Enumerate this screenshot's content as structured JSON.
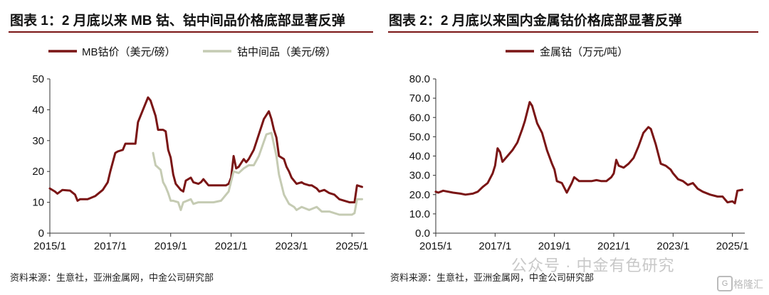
{
  "chart_data": [
    {
      "type": "line",
      "title": "图表 1：2 月底以来 MB 钴、钴中间品价格底部显著反弹",
      "source": "资料来源：生意社，亚洲金属网，中金公司研究部",
      "x_ticks": [
        "2015/1",
        "2017/1",
        "2019/1",
        "2021/1",
        "2023/1",
        "2025/1"
      ],
      "y_ticks": [
        "0",
        "10",
        "20",
        "30",
        "40",
        "50"
      ],
      "ylim": [
        0,
        50
      ],
      "xlim": [
        "2015-01",
        "2025-06"
      ],
      "legend_position": "top",
      "grid": false,
      "series": [
        {
          "name": "MB钴价（美元/磅）",
          "color": "#7a1515",
          "points": [
            [
              "2015-01",
              14.5
            ],
            [
              "2015-03",
              13.5
            ],
            [
              "2015-04",
              12.8
            ],
            [
              "2015-06",
              14.0
            ],
            [
              "2015-09",
              13.8
            ],
            [
              "2015-11",
              12.5
            ],
            [
              "2015-12",
              10.5
            ],
            [
              "2016-01",
              11.0
            ],
            [
              "2016-04",
              11.0
            ],
            [
              "2016-07",
              12.0
            ],
            [
              "2016-10",
              14.0
            ],
            [
              "2016-12",
              16.5
            ],
            [
              "2017-01",
              20.0
            ],
            [
              "2017-03",
              26.0
            ],
            [
              "2017-04",
              26.5
            ],
            [
              "2017-06",
              27.0
            ],
            [
              "2017-07",
              29.0
            ],
            [
              "2017-10",
              29.0
            ],
            [
              "2017-11",
              29.0
            ],
            [
              "2017-12",
              36.0
            ],
            [
              "2018-02",
              40.0
            ],
            [
              "2018-04",
              44.0
            ],
            [
              "2018-05",
              43.0
            ],
            [
              "2018-07",
              38.0
            ],
            [
              "2018-08",
              33.5
            ],
            [
              "2018-10",
              33.5
            ],
            [
              "2018-11",
              33.0
            ],
            [
              "2018-12",
              27.0
            ],
            [
              "2019-01",
              24.5
            ],
            [
              "2019-02",
              19.0
            ],
            [
              "2019-03",
              16.0
            ],
            [
              "2019-05",
              14.0
            ],
            [
              "2019-06",
              13.5
            ],
            [
              "2019-07",
              17.0
            ],
            [
              "2019-09",
              18.0
            ],
            [
              "2019-10",
              16.5
            ],
            [
              "2019-12",
              16.0
            ],
            [
              "2020-01",
              16.5
            ],
            [
              "2020-02",
              17.5
            ],
            [
              "2020-04",
              15.5
            ],
            [
              "2020-06",
              15.5
            ],
            [
              "2020-09",
              15.5
            ],
            [
              "2020-11",
              15.5
            ],
            [
              "2020-12",
              16.0
            ],
            [
              "2021-01",
              18.0
            ],
            [
              "2021-02",
              25.0
            ],
            [
              "2021-03",
              21.0
            ],
            [
              "2021-04",
              21.5
            ],
            [
              "2021-06",
              24.0
            ],
            [
              "2021-07",
              23.0
            ],
            [
              "2021-08",
              24.0
            ],
            [
              "2021-10",
              27.0
            ],
            [
              "2021-12",
              32.0
            ],
            [
              "2022-02",
              37.0
            ],
            [
              "2022-04",
              39.5
            ],
            [
              "2022-05",
              37.0
            ],
            [
              "2022-06",
              33.5
            ],
            [
              "2022-07",
              31.0
            ],
            [
              "2022-08",
              25.0
            ],
            [
              "2022-10",
              24.0
            ],
            [
              "2022-11",
              21.5
            ],
            [
              "2022-12",
              20.0
            ],
            [
              "2023-01",
              18.0
            ],
            [
              "2023-03",
              16.0
            ],
            [
              "2023-05",
              16.5
            ],
            [
              "2023-06",
              16.0
            ],
            [
              "2023-08",
              15.5
            ],
            [
              "2023-09",
              15.5
            ],
            [
              "2023-11",
              14.5
            ],
            [
              "2023-12",
              13.5
            ],
            [
              "2024-02",
              14.0
            ],
            [
              "2024-04",
              13.0
            ],
            [
              "2024-06",
              12.5
            ],
            [
              "2024-08",
              11.0
            ],
            [
              "2024-10",
              10.5
            ],
            [
              "2024-12",
              10.0
            ],
            [
              "2025-01",
              10.0
            ],
            [
              "2025-02",
              10.0
            ],
            [
              "2025-03",
              15.5
            ],
            [
              "2025-05",
              15.0
            ]
          ]
        },
        {
          "name": "钴中间品（美元/磅）",
          "color": "#c5cbb3",
          "points": [
            [
              "2018-06",
              26.0
            ],
            [
              "2018-07",
              22.0
            ],
            [
              "2018-09",
              20.5
            ],
            [
              "2018-10",
              16.5
            ],
            [
              "2018-11",
              15.0
            ],
            [
              "2018-12",
              13.0
            ],
            [
              "2019-01",
              10.5
            ],
            [
              "2019-02",
              10.5
            ],
            [
              "2019-04",
              10.0
            ],
            [
              "2019-05",
              7.5
            ],
            [
              "2019-06",
              10.0
            ],
            [
              "2019-09",
              11.0
            ],
            [
              "2019-10",
              9.5
            ],
            [
              "2019-12",
              10.0
            ],
            [
              "2020-06",
              10.0
            ],
            [
              "2020-09",
              10.5
            ],
            [
              "2020-12",
              13.5
            ],
            [
              "2021-02",
              20.0
            ],
            [
              "2021-04",
              19.5
            ],
            [
              "2021-06",
              21.0
            ],
            [
              "2021-08",
              22.0
            ],
            [
              "2021-10",
              22.0
            ],
            [
              "2021-12",
              25.0
            ],
            [
              "2022-03",
              32.0
            ],
            [
              "2022-05",
              32.5
            ],
            [
              "2022-07",
              25.0
            ],
            [
              "2022-08",
              19.0
            ],
            [
              "2022-10",
              12.5
            ],
            [
              "2022-12",
              9.5
            ],
            [
              "2023-02",
              8.5
            ],
            [
              "2023-03",
              7.5
            ],
            [
              "2023-05",
              8.5
            ],
            [
              "2023-08",
              7.5
            ],
            [
              "2023-11",
              8.5
            ],
            [
              "2024-01",
              7.0
            ],
            [
              "2024-04",
              7.0
            ],
            [
              "2024-08",
              6.0
            ],
            [
              "2024-12",
              6.0
            ],
            [
              "2025-01",
              6.0
            ],
            [
              "2025-02",
              6.5
            ],
            [
              "2025-03",
              11.0
            ],
            [
              "2025-05",
              11.0
            ]
          ]
        }
      ]
    },
    {
      "type": "line",
      "title": "图表 2：2 月底以来国内金属钴价格底部显著反弹",
      "source": "资料来源：生意社，亚洲金属网，中金公司研究部",
      "x_ticks": [
        "2015/1",
        "2017/1",
        "2019/1",
        "2021/1",
        "2023/1",
        "2025/1"
      ],
      "y_ticks": [
        "0.0",
        "10.0",
        "20.0",
        "30.0",
        "40.0",
        "50.0",
        "60.0",
        "70.0",
        "80.0"
      ],
      "ylim": [
        0,
        80
      ],
      "xlim": [
        "2015-01",
        "2025-06"
      ],
      "legend_position": "top",
      "grid": false,
      "series": [
        {
          "name": "金属钴（万元/吨）",
          "color": "#7a1515",
          "points": [
            [
              "2015-01",
              21.5
            ],
            [
              "2015-02",
              21.0
            ],
            [
              "2015-04",
              22.0
            ],
            [
              "2015-08",
              21.0
            ],
            [
              "2015-11",
              20.5
            ],
            [
              "2016-01",
              20.0
            ],
            [
              "2016-04",
              20.5
            ],
            [
              "2016-06",
              21.5
            ],
            [
              "2016-08",
              24.0
            ],
            [
              "2016-10",
              26.0
            ],
            [
              "2016-12",
              31.0
            ],
            [
              "2017-01",
              35.0
            ],
            [
              "2017-02",
              44.0
            ],
            [
              "2017-03",
              42.0
            ],
            [
              "2017-04",
              37.0
            ],
            [
              "2017-06",
              40.0
            ],
            [
              "2017-08",
              43.0
            ],
            [
              "2017-10",
              47.0
            ],
            [
              "2017-12",
              54.0
            ],
            [
              "2018-01",
              58.0
            ],
            [
              "2018-03",
              68.0
            ],
            [
              "2018-04",
              66.0
            ],
            [
              "2018-06",
              57.0
            ],
            [
              "2018-08",
              52.0
            ],
            [
              "2018-10",
              43.0
            ],
            [
              "2018-12",
              36.0
            ],
            [
              "2019-01",
              33.0
            ],
            [
              "2019-02",
              27.0
            ],
            [
              "2019-04",
              26.0
            ],
            [
              "2019-06",
              21.0
            ],
            [
              "2019-08",
              26.0
            ],
            [
              "2019-09",
              29.0
            ],
            [
              "2019-11",
              27.0
            ],
            [
              "2020-01",
              27.0
            ],
            [
              "2020-04",
              27.0
            ],
            [
              "2020-06",
              27.5
            ],
            [
              "2020-08",
              27.0
            ],
            [
              "2020-10",
              27.0
            ],
            [
              "2020-12",
              29.0
            ],
            [
              "2021-01",
              31.0
            ],
            [
              "2021-02",
              38.0
            ],
            [
              "2021-03",
              35.0
            ],
            [
              "2021-05",
              34.0
            ],
            [
              "2021-07",
              36.0
            ],
            [
              "2021-09",
              39.0
            ],
            [
              "2021-11",
              45.0
            ],
            [
              "2022-01",
              52.0
            ],
            [
              "2022-03",
              55.0
            ],
            [
              "2022-04",
              54.0
            ],
            [
              "2022-06",
              46.0
            ],
            [
              "2022-08",
              36.0
            ],
            [
              "2022-10",
              35.0
            ],
            [
              "2022-12",
              33.0
            ],
            [
              "2023-01",
              31.0
            ],
            [
              "2023-03",
              28.0
            ],
            [
              "2023-05",
              27.0
            ],
            [
              "2023-07",
              25.0
            ],
            [
              "2023-09",
              26.0
            ],
            [
              "2023-11",
              23.0
            ],
            [
              "2024-01",
              21.5
            ],
            [
              "2024-04",
              20.0
            ],
            [
              "2024-07",
              19.0
            ],
            [
              "2024-09",
              19.0
            ],
            [
              "2024-11",
              16.0
            ],
            [
              "2025-01",
              16.5
            ],
            [
              "2025-02",
              15.5
            ],
            [
              "2025-03",
              22.0
            ],
            [
              "2025-05",
              22.5
            ]
          ]
        }
      ]
    }
  ],
  "watermark": {
    "text": "公众号 · 中金有色研究",
    "badge_text": "格隆汇"
  }
}
